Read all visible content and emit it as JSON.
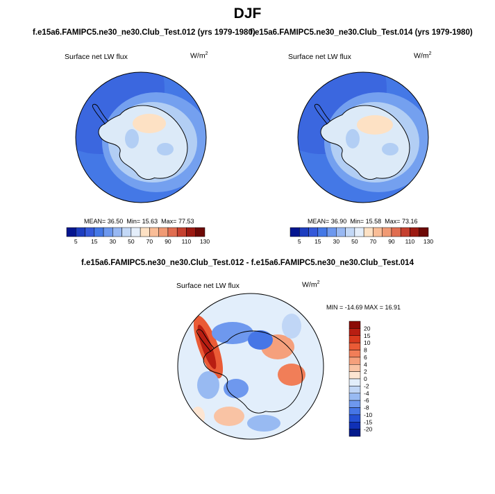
{
  "title": "DJF",
  "case1_title": "f.e15a6.FAMIPC5.ne30_ne30.Club_Test.012 (yrs 1979-1980)",
  "case2_title": "f.e15a6.FAMIPC5.ne30_ne30.Club_Test.014 (yrs 1979-1980)",
  "diff_title": "f.e15a6.FAMIPC5.ne30_ne30.Club_Test.012 - f.e15a6.FAMIPC5.ne30_ne30.Club_Test.014",
  "variable": "Surface net LW flux",
  "units": "W/m",
  "units_exp": "2",
  "panels": [
    {
      "mean_label": "MEAN=",
      "mean": "36.50",
      "min_label": "Min=",
      "min": "15.63",
      "max_label": "Max=",
      "max": "77.53"
    },
    {
      "mean_label": "MEAN=",
      "mean": "36.90",
      "min_label": "Min=",
      "min": "15.58",
      "max_label": "Max=",
      "max": "73.16"
    }
  ],
  "diff_stats": "MIN = -14.69 MAX =  16.91",
  "colors": {
    "ocean": "#4478e6",
    "ocean_light": "#74a0ef",
    "ice_light": "#b2cef4",
    "ice_pale": "#dceaf8",
    "ice_warm": "#fde1c4",
    "coast": "#000000"
  },
  "chart_data": [
    {
      "type": "heatmap",
      "projection": "south-polar-stereographic",
      "title": "Surface net LW flux",
      "colorbar_orientation": "horizontal",
      "colorbar_ticks": [
        "5",
        "15",
        "30",
        "50",
        "70",
        "90",
        "110",
        "130"
      ],
      "colorbar_colors": [
        "#04158f",
        "#1d3dbf",
        "#3559d9",
        "#4478e6",
        "#6d98ee",
        "#98b8f2",
        "#c3d8f6",
        "#e4eefa",
        "#fde1c4",
        "#f9bd97",
        "#f09a74",
        "#e06d50",
        "#c5402f",
        "#9c1a12",
        "#6d0906"
      ],
      "mean": 36.5,
      "min": 15.63,
      "max": 77.53
    },
    {
      "type": "heatmap",
      "projection": "south-polar-stereographic",
      "title": "Surface net LW flux",
      "colorbar_orientation": "horizontal",
      "colorbar_ticks": [
        "5",
        "15",
        "30",
        "50",
        "70",
        "90",
        "110",
        "130"
      ],
      "colorbar_colors": [
        "#04158f",
        "#1d3dbf",
        "#3559d9",
        "#4478e6",
        "#6d98ee",
        "#98b8f2",
        "#c3d8f6",
        "#e4eefa",
        "#fde1c4",
        "#f9bd97",
        "#f09a74",
        "#e06d50",
        "#c5402f",
        "#9c1a12",
        "#6d0906"
      ],
      "mean": 36.9,
      "min": 15.58,
      "max": 73.16
    },
    {
      "type": "heatmap",
      "projection": "south-polar-stereographic",
      "title": "Surface net LW flux",
      "colorbar_orientation": "vertical",
      "colorbar_ticks": [
        "20",
        "15",
        "10",
        "8",
        "6",
        "4",
        "2",
        "0",
        "-2",
        "-4",
        "-6",
        "-8",
        "-10",
        "-15",
        "-20"
      ],
      "colorbar_colors": [
        "#8b0a06",
        "#b81e12",
        "#d93a1e",
        "#ea5b36",
        "#f17e58",
        "#f5a07c",
        "#f9c3a4",
        "#fde5d2",
        "#e2eefb",
        "#c0d6f6",
        "#98baf2",
        "#6e98ee",
        "#4676e6",
        "#2450d4",
        "#1030b6",
        "#041a8c"
      ],
      "min": -14.69,
      "max": 16.91
    }
  ]
}
